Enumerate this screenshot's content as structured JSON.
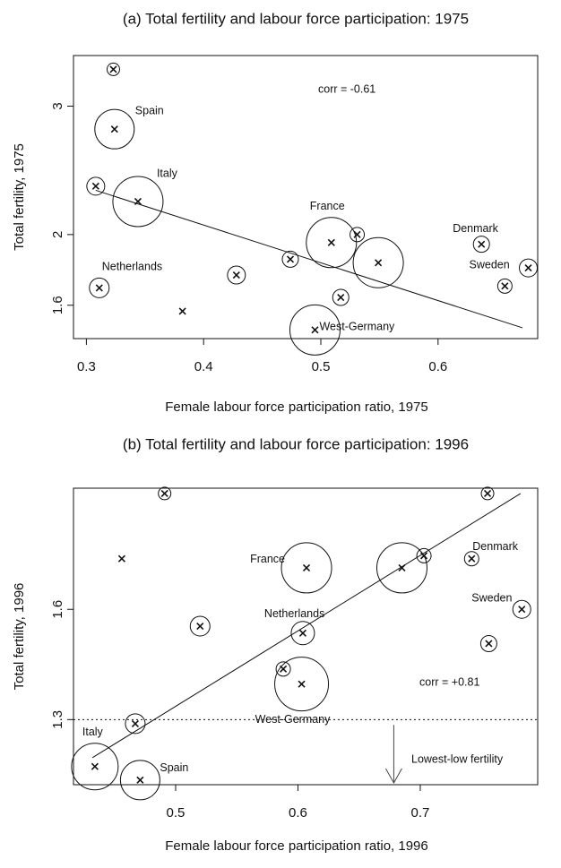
{
  "chart_data": [
    {
      "type": "scatter",
      "title": "(a) Total fertility and labour force participation: 1975",
      "xlabel": "Female labour force participation ratio, 1975",
      "ylabel": "Total fertility, 1975",
      "annotation": "corr = -0.61",
      "color": "#111111",
      "ylog": true,
      "xlim": [
        0.289,
        0.685
      ],
      "xticks": [
        0.3,
        0.4,
        0.5,
        0.6
      ],
      "ylim": [
        1.44,
        3.52
      ],
      "yticks": [
        1.6,
        2,
        3
      ],
      "x": [
        0.323,
        0.324,
        0.308,
        0.344,
        0.311,
        0.382,
        0.428,
        0.474,
        0.509,
        0.531,
        0.549,
        0.517,
        0.495,
        0.637,
        0.677,
        0.657
      ],
      "y": [
        3.37,
        2.79,
        2.33,
        2.22,
        1.69,
        1.57,
        1.76,
        1.85,
        1.95,
        2.0,
        1.83,
        1.64,
        1.48,
        1.94,
        1.8,
        1.7
      ],
      "sizes": [
        7,
        22,
        10,
        28,
        11,
        0,
        10,
        9,
        28,
        8,
        28,
        9,
        28,
        9,
        10,
        8
      ],
      "labels": [
        null,
        "Spain",
        null,
        "Italy",
        "Netherlands",
        null,
        null,
        null,
        "France",
        null,
        null,
        null,
        "West-Germany",
        "Denmark",
        "Sweden",
        null
      ],
      "trend": {
        "x": [
          0.308,
          0.672
        ],
        "y": [
          2.3,
          1.49
        ]
      }
    },
    {
      "type": "scatter",
      "title": "(b) Total fertility and labour force participation: 1996",
      "xlabel": "Female labour force participation ratio, 1996",
      "ylabel": "Total fertility, 1996",
      "annotation": "corr = +0.81",
      "color": "#111111",
      "ylog": true,
      "xlim": [
        0.4165,
        0.796
      ],
      "xticks": [
        0.5,
        0.6,
        0.7
      ],
      "ylim": [
        1.15,
        2.01
      ],
      "yticks": [
        1.3,
        1.6
      ],
      "x": [
        0.491,
        0.456,
        0.607,
        0.685,
        0.703,
        0.755,
        0.742,
        0.783,
        0.756,
        0.52,
        0.604,
        0.588,
        0.603,
        0.467,
        0.434,
        0.471
      ],
      "y": [
        1.99,
        1.76,
        1.73,
        1.73,
        1.77,
        1.99,
        1.76,
        1.6,
        1.5,
        1.55,
        1.53,
        1.43,
        1.39,
        1.29,
        1.19,
        1.16
      ],
      "sizes": [
        7,
        0,
        28,
        28,
        8,
        7,
        8,
        10,
        9,
        11,
        13,
        8,
        30,
        11,
        26,
        22
      ],
      "labels": [
        null,
        null,
        "France",
        null,
        null,
        null,
        "Denmark",
        "Sweden",
        null,
        null,
        "Netherlands",
        null,
        "West-Germany",
        null,
        "Italy",
        "Spain"
      ],
      "trend": {
        "x": [
          0.432,
          0.782
        ],
        "y": [
          1.21,
          1.99
        ]
      },
      "reference_line": {
        "y": 1.3,
        "label": "Lowest-low fertility"
      }
    }
  ]
}
